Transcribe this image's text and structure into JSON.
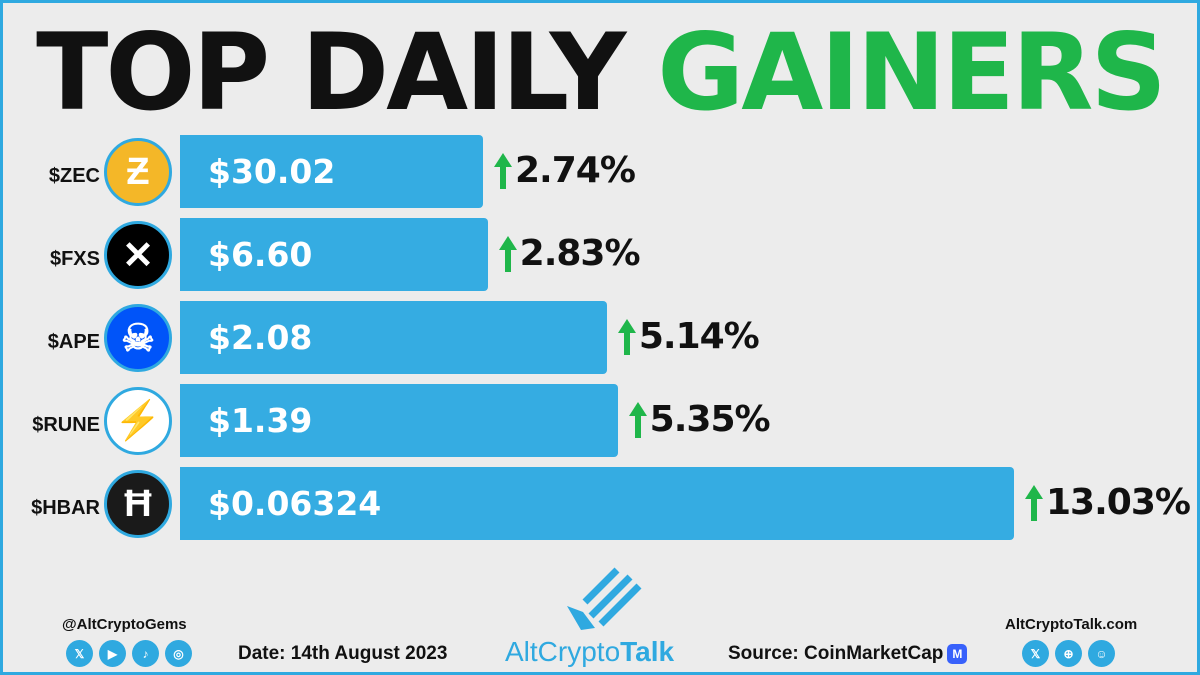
{
  "header": {
    "title_part1": "TOP DAILY",
    "title_part2": "GAINERS"
  },
  "colors": {
    "bar": "#35ace2",
    "accent_green": "#1fb64a",
    "brand_blue": "#2fa9e0"
  },
  "chart_data": {
    "type": "bar",
    "orientation": "horizontal",
    "title": "TOP DAILY GAINERS",
    "categories": [
      "$ZEC",
      "$FXS",
      "$APE",
      "$RUNE",
      "$HBAR"
    ],
    "values": [
      2.74,
      2.83,
      5.14,
      5.35,
      13.03
    ],
    "value_unit": "%",
    "price_labels": [
      "$30.02",
      "$6.60",
      "$2.08",
      "$1.39",
      "$0.06324"
    ],
    "change_labels": [
      "2.74%",
      "2.83%",
      "5.14%",
      "5.35%",
      "13.03%"
    ],
    "icons": [
      "zcash-icon",
      "frax-share-icon",
      "apecoin-icon",
      "thorchain-icon",
      "hedera-icon"
    ],
    "icon_colors": [
      "#f4b728",
      "#000000",
      "#0054f9",
      "#ffffff",
      "#1a1a1a"
    ],
    "icon_glyphs": [
      "Ƶ",
      "✕",
      "☠",
      "⚡",
      "Ħ"
    ],
    "xlim": [
      0,
      13.03
    ],
    "grid": false,
    "legend": "none"
  },
  "footer": {
    "handle": "@AltCryptoGems",
    "left_socials": [
      "x-icon",
      "youtube-icon",
      "tiktok-icon",
      "instagram-icon"
    ],
    "date": "Date: 14th August 2023",
    "brand_part1": "AltCrypto",
    "brand_part2": "Talk",
    "source": "Source: CoinMarketCap",
    "website": "AltCryptoTalk.com",
    "right_socials": [
      "x-icon",
      "website-icon",
      "discord-icon"
    ]
  }
}
